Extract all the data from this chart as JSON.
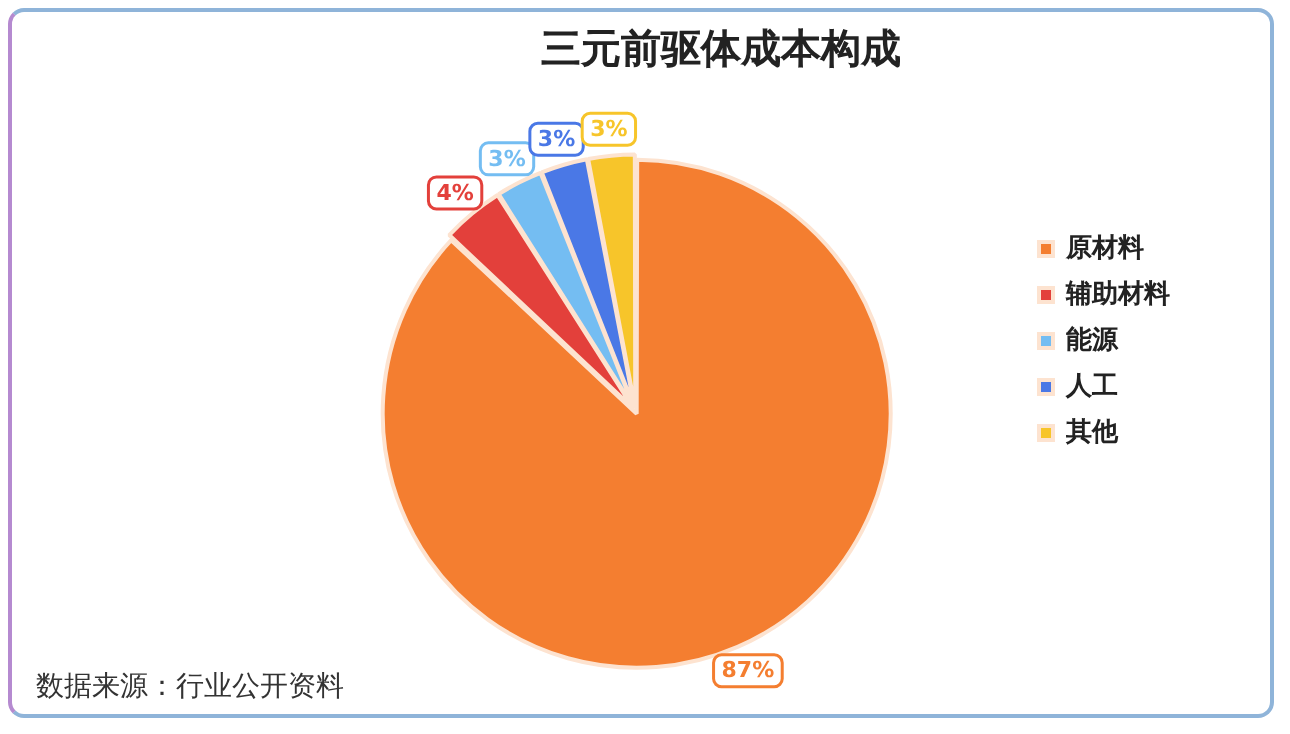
{
  "chart_data": {
    "type": "pie",
    "title": "三元前驱体成本构成",
    "categories": [
      "原材料",
      "辅助材料",
      "能源",
      "人工",
      "其他"
    ],
    "values": [
      87,
      4,
      3,
      3,
      3
    ],
    "colors": [
      "#f47e30",
      "#e3403b",
      "#74bdf2",
      "#4a78e6",
      "#f7c52a"
    ],
    "value_labels": [
      "87%",
      "4%",
      "3%",
      "3%",
      "3%"
    ],
    "legend": "right",
    "annotations": [
      "数据来源：行业公开资料"
    ]
  }
}
